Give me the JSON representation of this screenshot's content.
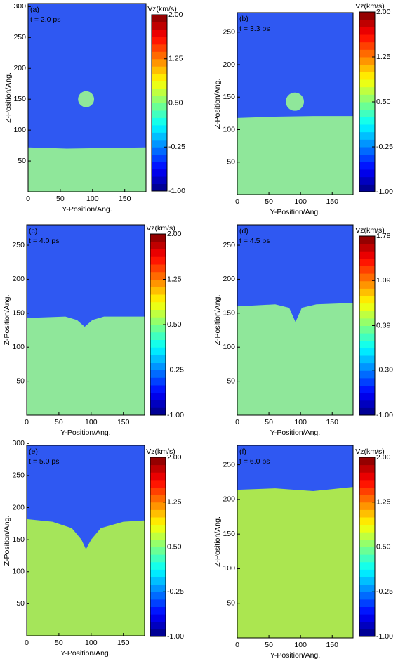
{
  "chart_data": [
    {
      "type": "heatmap",
      "panel": "(a)",
      "time": "t = 2.0 ps",
      "xlabel": "Y-Position/Ang.",
      "ylabel": "Z-Position/Ang.",
      "colorbar_title": "Vz(km/s)",
      "xlim": [
        0,
        183
      ],
      "ylim": [
        0,
        305
      ],
      "xticks": [
        0,
        50,
        100,
        150
      ],
      "yticks": [
        50,
        100,
        150,
        200,
        250,
        300
      ],
      "clim": [
        -1,
        2
      ],
      "cticks": [
        {
          "value": -1,
          "label": "-1.00"
        },
        {
          "value": -0.25,
          "label": "-0.25"
        },
        {
          "value": 0.5,
          "label": "0.50"
        },
        {
          "value": 1.25,
          "label": "1.25"
        },
        {
          "value": 2,
          "label": "2.00"
        }
      ],
      "surface": {
        "x": [
          0,
          60,
          120,
          183
        ],
        "z": [
          72,
          70,
          71,
          72
        ]
      },
      "droplet": {
        "y": 90,
        "z": 150,
        "r": 13
      },
      "colors": {
        "vapor": "#2f58f2",
        "liquid": "#8fe79a"
      }
    },
    {
      "type": "heatmap",
      "panel": "(b)",
      "time": "t = 3.3 ps",
      "xlabel": "Y-Position/Ang.",
      "ylabel": "Z-Position/Ang.",
      "colorbar_title": "Vz(km/s)",
      "xlim": [
        0,
        183
      ],
      "ylim": [
        0,
        280
      ],
      "xticks": [
        0,
        50,
        100,
        150
      ],
      "yticks": [
        50,
        100,
        150,
        200,
        250
      ],
      "clim": [
        -1,
        2
      ],
      "cticks": [
        {
          "value": -1,
          "label": "-1.00"
        },
        {
          "value": -0.25,
          "label": "-0.25"
        },
        {
          "value": 0.5,
          "label": "0.50"
        },
        {
          "value": 1.25,
          "label": "1.25"
        },
        {
          "value": 2,
          "label": "2.00"
        }
      ],
      "surface": {
        "x": [
          0,
          60,
          120,
          183
        ],
        "z": [
          118,
          120,
          121,
          121
        ]
      },
      "droplet": {
        "y": 91,
        "z": 143,
        "r": 14
      },
      "colors": {
        "vapor": "#2f58f2",
        "liquid": "#8fe79a"
      }
    },
    {
      "type": "heatmap",
      "panel": "(c)",
      "time": "t = 4.0 ps",
      "xlabel": "Y-Position/Ang.",
      "ylabel": "Z-Position/Ang.",
      "colorbar_title": "Vz(km/s)",
      "xlim": [
        0,
        183
      ],
      "ylim": [
        0,
        280
      ],
      "xticks": [
        0,
        50,
        100,
        150
      ],
      "yticks": [
        50,
        100,
        150,
        200,
        250
      ],
      "clim": [
        -1,
        2
      ],
      "cticks": [
        {
          "value": -1,
          "label": "-1.00"
        },
        {
          "value": -0.25,
          "label": "-0.25"
        },
        {
          "value": 0.5,
          "label": "0.50"
        },
        {
          "value": 1.25,
          "label": "1.25"
        },
        {
          "value": 2,
          "label": "2.00"
        }
      ],
      "surface": {
        "x": [
          0,
          60,
          78,
          90,
          102,
          120,
          183
        ],
        "z": [
          143,
          145,
          140,
          130,
          140,
          145,
          145
        ]
      },
      "colors": {
        "vapor": "#2f58f2",
        "liquid": "#8fe79a"
      }
    },
    {
      "type": "heatmap",
      "panel": "(d)",
      "time": "t = 4.5 ps",
      "xlabel": "Y-Position/Ang.",
      "ylabel": "Z-Position/Ang.",
      "colorbar_title": "Vz(km/s)",
      "xlim": [
        0,
        183
      ],
      "ylim": [
        0,
        280
      ],
      "xticks": [
        0,
        50,
        100,
        150
      ],
      "yticks": [
        50,
        100,
        150,
        200,
        250
      ],
      "clim": [
        -1,
        1.78
      ],
      "cticks": [
        {
          "value": -1,
          "label": "-1.00"
        },
        {
          "value": -0.3,
          "label": "-0.30"
        },
        {
          "value": 0.39,
          "label": "0.39"
        },
        {
          "value": 1.09,
          "label": "1.09"
        },
        {
          "value": 1.78,
          "label": "1.78"
        }
      ],
      "surface": {
        "x": [
          0,
          60,
          82,
          92,
          102,
          125,
          183
        ],
        "z": [
          160,
          163,
          158,
          137,
          158,
          163,
          165
        ]
      },
      "colors": {
        "vapor": "#2f58f2",
        "liquid": "#8fe79a"
      }
    },
    {
      "type": "heatmap",
      "panel": "(e)",
      "time": "t = 5.0 ps",
      "xlabel": "Y-Position/Ang.",
      "ylabel": "Z-Position/Ang.",
      "colorbar_title": "Vz(km/s)",
      "xlim": [
        0,
        183
      ],
      "ylim": [
        0,
        297
      ],
      "xticks": [
        0,
        50,
        100,
        150
      ],
      "yticks": [
        50,
        100,
        150,
        200,
        250,
        300
      ],
      "clim": [
        -1,
        2
      ],
      "cticks": [
        {
          "value": -1,
          "label": "-1.00"
        },
        {
          "value": -0.25,
          "label": "-0.25"
        },
        {
          "value": 0.5,
          "label": "0.50"
        },
        {
          "value": 1.25,
          "label": "1.25"
        },
        {
          "value": 2,
          "label": "2.00"
        }
      ],
      "surface": {
        "x": [
          0,
          40,
          70,
          85,
          92,
          100,
          115,
          150,
          183
        ],
        "z": [
          182,
          178,
          168,
          150,
          135,
          150,
          168,
          178,
          180
        ]
      },
      "colors": {
        "vapor": "#2f58f2",
        "liquid": "#a5e55a"
      }
    },
    {
      "type": "heatmap",
      "panel": "(f)",
      "time": "t = 6.0 ps",
      "xlabel": "Y-Position/Ang.",
      "ylabel": "Z-Position/Ang.",
      "colorbar_title": "Vz(km/s)",
      "xlim": [
        0,
        183
      ],
      "ylim": [
        0,
        278
      ],
      "xticks": [
        0,
        50,
        100,
        150
      ],
      "yticks": [
        50,
        100,
        150,
        200,
        250
      ],
      "clim": [
        -1,
        2
      ],
      "cticks": [
        {
          "value": -1,
          "label": "-1.00"
        },
        {
          "value": -0.25,
          "label": "-0.25"
        },
        {
          "value": 0.5,
          "label": "0.50"
        },
        {
          "value": 1.25,
          "label": "1.25"
        },
        {
          "value": 2,
          "label": "2.00"
        }
      ],
      "surface": {
        "x": [
          0,
          60,
          120,
          183
        ],
        "z": [
          214,
          216,
          212,
          218
        ]
      },
      "colors": {
        "vapor": "#2f58f2",
        "liquid": "#abe650"
      }
    }
  ]
}
